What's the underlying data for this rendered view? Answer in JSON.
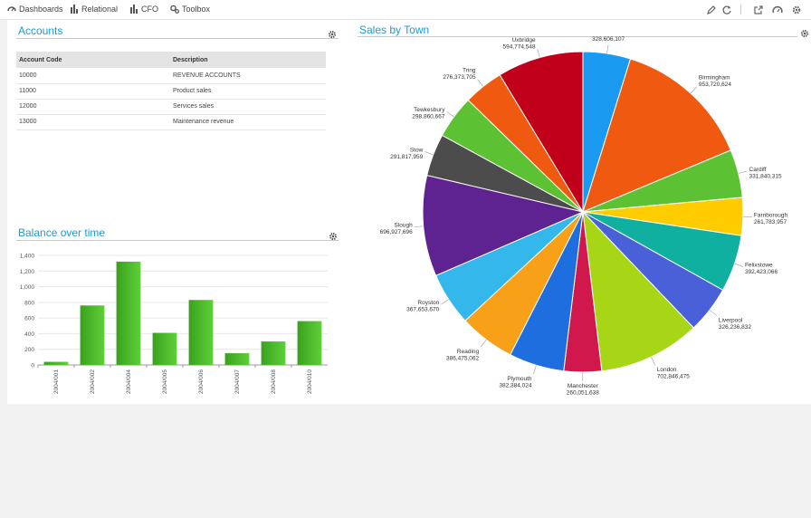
{
  "nav": {
    "items": [
      {
        "label": "Dashboards",
        "icon": "dashboard-icon"
      },
      {
        "label": "Relational",
        "icon": "bar-chart-icon"
      },
      {
        "label": "CFO",
        "icon": "bar-chart-icon"
      },
      {
        "label": "Toolbox",
        "icon": "gears-icon"
      }
    ],
    "tools": [
      "pencil-icon",
      "refresh-icon",
      "export-icon",
      "speedometer-icon",
      "settings-icon"
    ]
  },
  "accounts": {
    "title": "Accounts",
    "headers": [
      "Account Code",
      "Description"
    ],
    "rows": [
      [
        "10000",
        "REVENUE ACCOUNTS"
      ],
      [
        "11000",
        "Product sales"
      ],
      [
        "12000",
        "Services sales"
      ],
      [
        "13000",
        "Maintenance revenue"
      ]
    ]
  },
  "balance": {
    "title": "Balance over time"
  },
  "sales": {
    "title": "Sales by Town"
  },
  "colors": {
    "accent": "#1a9ad6",
    "bar_top": "#5fcf3a",
    "bar_bottom": "#3aa21c"
  },
  "chart_data": [
    {
      "type": "bar",
      "title": "Balance over time",
      "categories": [
        "2004/001",
        "2004/002",
        "2004/004",
        "2004/005",
        "2004/006",
        "2004/007",
        "2004/008",
        "2004/010"
      ],
      "values": [
        40,
        760,
        1320,
        410,
        830,
        150,
        300,
        560
      ],
      "ylim": [
        0,
        1400
      ],
      "yticks": [
        "0",
        "200",
        "400",
        "600",
        "800",
        "1,000",
        "1,200",
        "1,400"
      ],
      "grid": true
    },
    {
      "type": "pie",
      "title": "Sales by Town",
      "slices": [
        {
          "label": "",
          "value_label": "328,606,107",
          "value": 328606107,
          "color": "#1a9af0"
        },
        {
          "label": "Birmingham",
          "value_label": "953,720,624",
          "value": 953720624,
          "color": "#f05a10"
        },
        {
          "label": "Cardiff",
          "value_label": "331,840,315",
          "value": 331840315,
          "color": "#5cc234"
        },
        {
          "label": "Farnborough",
          "value_label": "261,783,957",
          "value": 261783957,
          "color": "#ffcc00"
        },
        {
          "label": "Felixstowe",
          "value_label": "392,423,066",
          "value": 392423066,
          "color": "#0fb0a0"
        },
        {
          "label": "Liverpool",
          "value_label": "326,236,832",
          "value": 326236832,
          "color": "#4a60d8"
        },
        {
          "label": "London",
          "value_label": "702,846,475",
          "value": 702846475,
          "color": "#a6d616"
        },
        {
          "label": "Manchester",
          "value_label": "260,051,638",
          "value": 260051638,
          "color": "#d0184c"
        },
        {
          "label": "Plymouth",
          "value_label": "382,384,024",
          "value": 382384024,
          "color": "#1e6ee0"
        },
        {
          "label": "Reading",
          "value_label": "386,475,062",
          "value": 386475062,
          "color": "#f8a018"
        },
        {
          "label": "Royston",
          "value_label": "367,653,670",
          "value": 367653670,
          "color": "#34b8ec"
        },
        {
          "label": "Slough",
          "value_label": "696,927,696",
          "value": 696927696,
          "color": "#5e2390"
        },
        {
          "label": "Stow",
          "value_label": "291,817,959",
          "value": 291817959,
          "color": "#4c4c4c"
        },
        {
          "label": "Tewkesbury",
          "value_label": "298,860,667",
          "value": 298860667,
          "color": "#5cc234"
        },
        {
          "label": "Tring",
          "value_label": "276,373,705",
          "value": 276373705,
          "color": "#f05a10"
        },
        {
          "label": "Uxbridge",
          "value_label": "594,774,548",
          "value": 594774548,
          "color": "#c0001a"
        }
      ]
    }
  ]
}
